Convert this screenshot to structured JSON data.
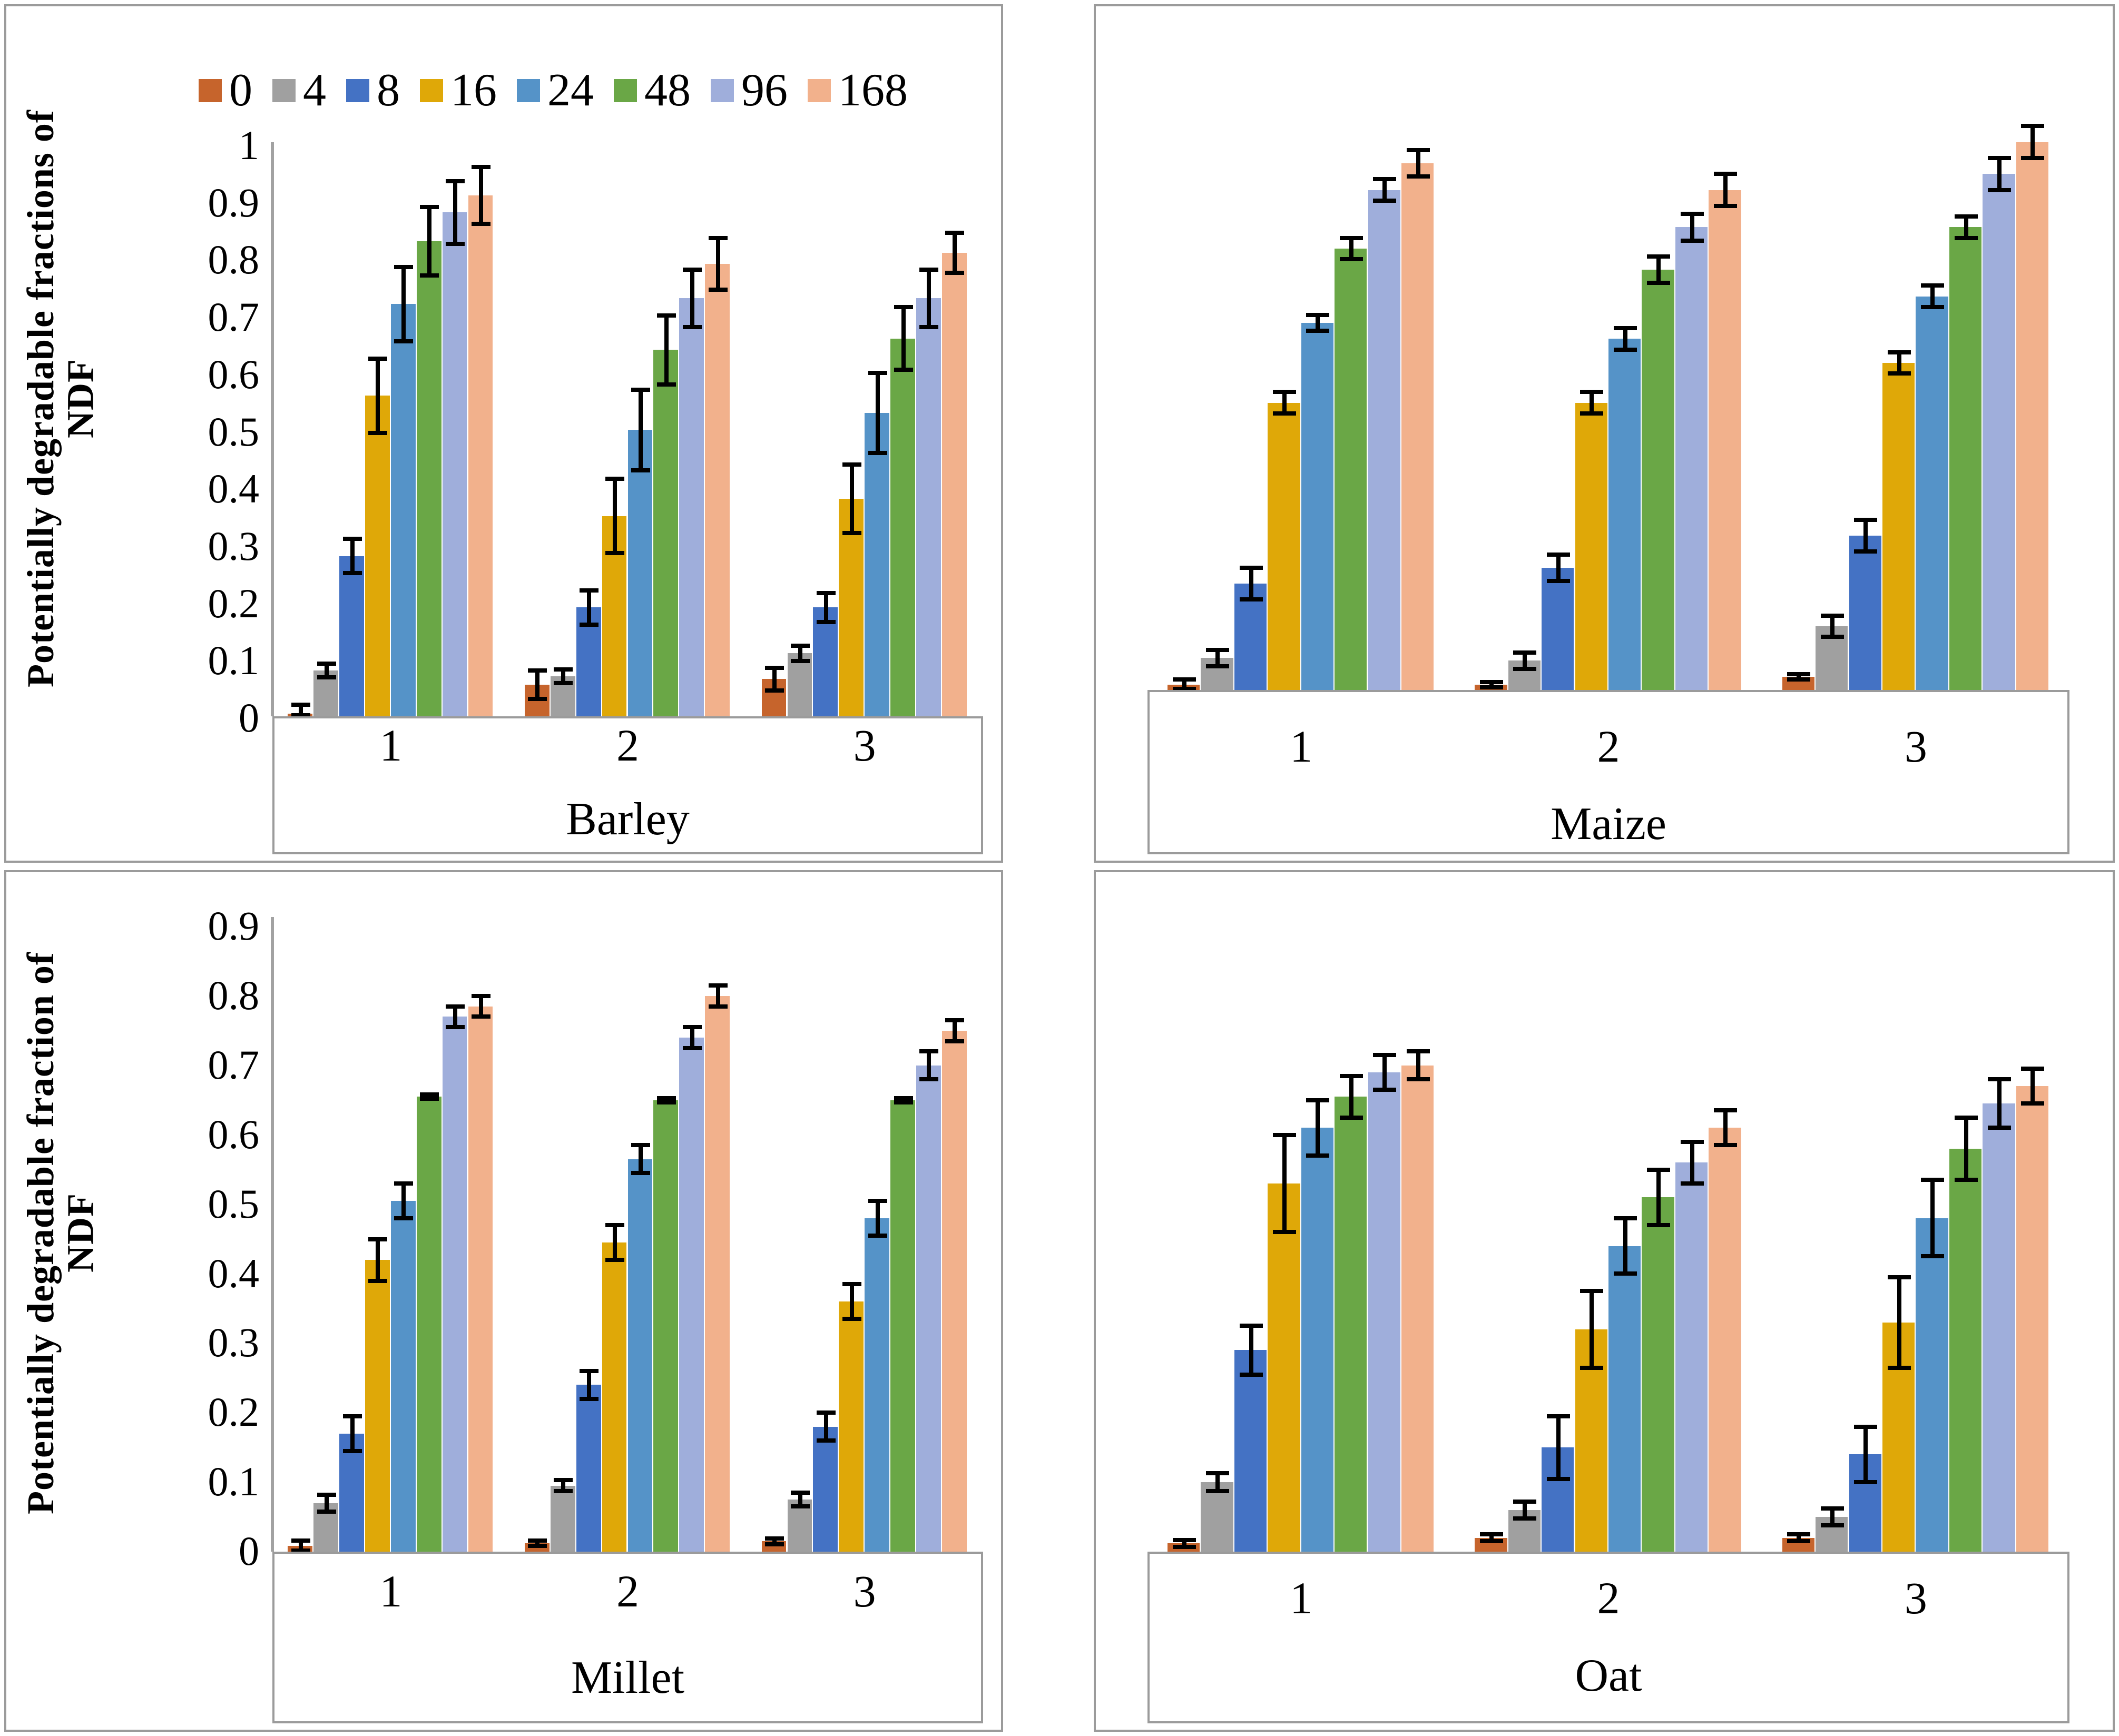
{
  "figure": {
    "description": "Four-panel grouped bar figure of potentially degradable NDF fractions by incubation time (h) for three groups per crop",
    "background_color": "#ffffff",
    "panel_border_color": "#9b9b9b",
    "axis_color": "#a2a2a2",
    "error_bar_color": "#000000"
  },
  "legend": {
    "labels": [
      "0",
      "4",
      "8",
      "16",
      "24",
      "48",
      "96",
      "168"
    ],
    "colors": [
      "#C6642C",
      "#A0A0A0",
      "#4472C4",
      "#DFA808",
      "#5593C8",
      "#6AA746",
      "#9FAEDB",
      "#F2B18C"
    ],
    "position": "top-of-barley-panel"
  },
  "chart_data": [
    {
      "type": "bar",
      "title": "Barley",
      "ylabel": "Potentially degradable fractions of NDF",
      "xlabel": "",
      "categories": [
        "1",
        "2",
        "3"
      ],
      "yticks": [
        "1",
        "0.9",
        "0.8",
        "0.7",
        "0.6",
        "0.5",
        "0.4",
        "0.3",
        "0.2",
        "0.1",
        "0"
      ],
      "ylim": [
        0,
        1.0
      ],
      "grid": "off",
      "legend_position": "top",
      "series": [
        {
          "name": "0",
          "values": [
            0.005,
            0.055,
            0.065
          ],
          "errors": [
            0.015,
            0.025,
            0.02
          ]
        },
        {
          "name": "4",
          "values": [
            0.08,
            0.07,
            0.11
          ],
          "errors": [
            0.012,
            0.012,
            0.013
          ]
        },
        {
          "name": "8",
          "values": [
            0.28,
            0.19,
            0.19
          ],
          "errors": [
            0.03,
            0.03,
            0.025
          ]
        },
        {
          "name": "16",
          "values": [
            0.56,
            0.35,
            0.38
          ],
          "errors": [
            0.065,
            0.065,
            0.06
          ]
        },
        {
          "name": "24",
          "values": [
            0.72,
            0.5,
            0.53
          ],
          "errors": [
            0.065,
            0.07,
            0.07
          ]
        },
        {
          "name": "48",
          "values": [
            0.83,
            0.64,
            0.66
          ],
          "errors": [
            0.06,
            0.06,
            0.055
          ]
        },
        {
          "name": "96",
          "values": [
            0.88,
            0.73,
            0.73
          ],
          "errors": [
            0.055,
            0.05,
            0.05
          ]
        },
        {
          "name": "168",
          "values": [
            0.91,
            0.79,
            0.81
          ],
          "errors": [
            0.05,
            0.045,
            0.035
          ]
        }
      ]
    },
    {
      "type": "bar",
      "title": "Maize",
      "ylabel": "",
      "xlabel": "",
      "categories": [
        "1",
        "2",
        "3"
      ],
      "yticks": [],
      "ylim": [
        0,
        1.07
      ],
      "grid": "off",
      "series": [
        {
          "name": "0",
          "values": [
            0.01,
            0.01,
            0.025
          ],
          "errors": [
            0.01,
            0.005,
            0.005
          ]
        },
        {
          "name": "4",
          "values": [
            0.06,
            0.055,
            0.12
          ],
          "errors": [
            0.015,
            0.015,
            0.02
          ]
        },
        {
          "name": "8",
          "values": [
            0.2,
            0.23,
            0.29
          ],
          "errors": [
            0.03,
            0.025,
            0.03
          ]
        },
        {
          "name": "16",
          "values": [
            0.54,
            0.54,
            0.615
          ],
          "errors": [
            0.02,
            0.02,
            0.02
          ]
        },
        {
          "name": "24",
          "values": [
            0.69,
            0.66,
            0.74
          ],
          "errors": [
            0.015,
            0.02,
            0.02
          ]
        },
        {
          "name": "48",
          "values": [
            0.83,
            0.79,
            0.87
          ],
          "errors": [
            0.02,
            0.025,
            0.02
          ]
        },
        {
          "name": "96",
          "values": [
            0.94,
            0.87,
            0.97
          ],
          "errors": [
            0.02,
            0.025,
            0.03
          ]
        },
        {
          "name": "168",
          "values": [
            0.99,
            0.94,
            1.03
          ],
          "errors": [
            0.025,
            0.03,
            0.03
          ]
        }
      ]
    },
    {
      "type": "bar",
      "title": "Millet",
      "ylabel": "Potentially degradable fraction of NDF",
      "xlabel": "",
      "categories": [
        "1",
        "2",
        "3"
      ],
      "yticks": [
        "0.9",
        "0.8",
        "0.7",
        "0.6",
        "0.5",
        "0.4",
        "0.3",
        "0.2",
        "0.1",
        "0"
      ],
      "ylim": [
        0,
        0.95
      ],
      "grid": "off",
      "series": [
        {
          "name": "0",
          "values": [
            0.008,
            0.012,
            0.015
          ],
          "errors": [
            0.008,
            0.004,
            0.004
          ]
        },
        {
          "name": "4",
          "values": [
            0.07,
            0.095,
            0.075
          ],
          "errors": [
            0.012,
            0.008,
            0.01
          ]
        },
        {
          "name": "8",
          "values": [
            0.17,
            0.24,
            0.18
          ],
          "errors": [
            0.025,
            0.02,
            0.02
          ]
        },
        {
          "name": "16",
          "values": [
            0.42,
            0.445,
            0.36
          ],
          "errors": [
            0.03,
            0.025,
            0.025
          ]
        },
        {
          "name": "24",
          "values": [
            0.505,
            0.565,
            0.48
          ],
          "errors": [
            0.025,
            0.02,
            0.025
          ]
        },
        {
          "name": "48",
          "values": [
            0.655,
            0.65,
            0.65
          ],
          "errors": [
            0.003,
            0.003,
            0.003
          ]
        },
        {
          "name": "96",
          "values": [
            0.77,
            0.74,
            0.7
          ],
          "errors": [
            0.015,
            0.015,
            0.02
          ]
        },
        {
          "name": "168",
          "values": [
            0.785,
            0.8,
            0.75
          ],
          "errors": [
            0.015,
            0.015,
            0.015
          ]
        }
      ]
    },
    {
      "type": "bar",
      "title": "Oat",
      "ylabel": "",
      "xlabel": "",
      "categories": [
        "1",
        "2",
        "3"
      ],
      "yticks": [],
      "ylim": [
        0,
        0.95
      ],
      "grid": "off",
      "series": [
        {
          "name": "0",
          "values": [
            0.012,
            0.02,
            0.02
          ],
          "errors": [
            0.005,
            0.005,
            0.005
          ]
        },
        {
          "name": "4",
          "values": [
            0.1,
            0.06,
            0.05
          ],
          "errors": [
            0.013,
            0.012,
            0.012
          ]
        },
        {
          "name": "8",
          "values": [
            0.29,
            0.15,
            0.14
          ],
          "errors": [
            0.035,
            0.045,
            0.04
          ]
        },
        {
          "name": "16",
          "values": [
            0.53,
            0.32,
            0.33
          ],
          "errors": [
            0.07,
            0.055,
            0.065
          ]
        },
        {
          "name": "24",
          "values": [
            0.61,
            0.44,
            0.48
          ],
          "errors": [
            0.04,
            0.04,
            0.055
          ]
        },
        {
          "name": "48",
          "values": [
            0.655,
            0.51,
            0.58
          ],
          "errors": [
            0.03,
            0.04,
            0.045
          ]
        },
        {
          "name": "96",
          "values": [
            0.69,
            0.56,
            0.645
          ],
          "errors": [
            0.025,
            0.03,
            0.035
          ]
        },
        {
          "name": "168",
          "values": [
            0.7,
            0.61,
            0.67
          ],
          "errors": [
            0.02,
            0.025,
            0.025
          ]
        }
      ]
    }
  ]
}
